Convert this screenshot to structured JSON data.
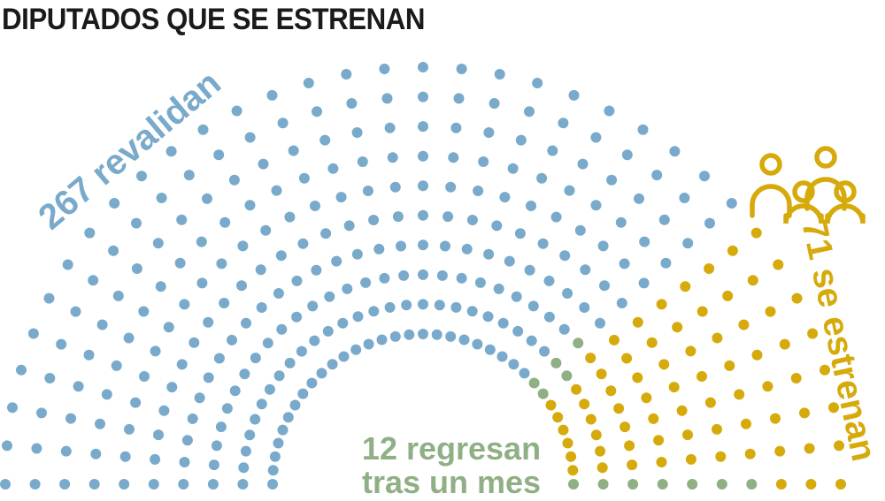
{
  "title": "DIPUTADOS QUE SE ESTRENAN",
  "colors": {
    "revalidan": "#7aaacb",
    "regresan": "#8faf84",
    "estrenan": "#d6aa0b",
    "title": "#1a1a1a"
  },
  "chart_data": {
    "type": "parliament",
    "total_seats": 350,
    "groups": [
      {
        "key": "revalidan",
        "label": "267 revalidan",
        "seats": 267
      },
      {
        "key": "regresan",
        "label_lines": [
          "12 regresan",
          "tras un mes"
        ],
        "seats": 12
      },
      {
        "key": "estrenan",
        "label": "71 se estrenan",
        "seats": 71
      }
    ],
    "icon": "people-group-icon"
  }
}
